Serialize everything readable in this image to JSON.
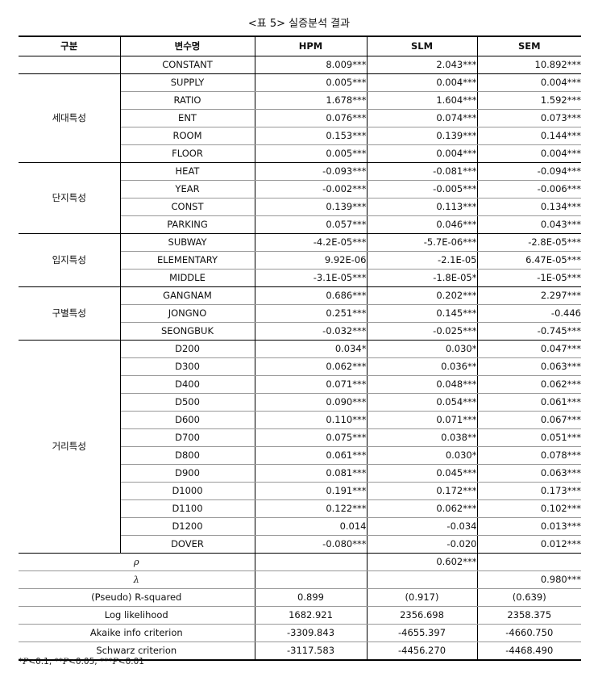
{
  "caption": "<표 5> 실증분석 결과",
  "headers": [
    "구분",
    "변수명",
    "HPM",
    "SLM",
    "SEM"
  ],
  "groups": [
    {
      "name": "",
      "rows": [
        {
          "var": "CONSTANT",
          "hpm": "8.009***",
          "slm": "2.043***",
          "sem": "10.892***"
        }
      ]
    },
    {
      "name": "세대특성",
      "rows": [
        {
          "var": "SUPPLY",
          "hpm": "0.005***",
          "slm": "0.004***",
          "sem": "0.004***"
        },
        {
          "var": "RATIO",
          "hpm": "1.678***",
          "slm": "1.604***",
          "sem": "1.592***"
        },
        {
          "var": "ENT",
          "hpm": "0.076***",
          "slm": "0.074***",
          "sem": "0.073***"
        },
        {
          "var": "ROOM",
          "hpm": "0.153***",
          "slm": "0.139***",
          "sem": "0.144***"
        },
        {
          "var": "FLOOR",
          "hpm": "0.005***",
          "slm": "0.004***",
          "sem": "0.004***"
        }
      ]
    },
    {
      "name": "단지특성",
      "rows": [
        {
          "var": "HEAT",
          "hpm": "-0.093***",
          "slm": "-0.081***",
          "sem": "-0.094***"
        },
        {
          "var": "YEAR",
          "hpm": "-0.002***",
          "slm": "-0.005***",
          "sem": "-0.006***"
        },
        {
          "var": "CONST",
          "hpm": "0.139***",
          "slm": "0.113***",
          "sem": "0.134***"
        },
        {
          "var": "PARKING",
          "hpm": "0.057***",
          "slm": "0.046***",
          "sem": "0.043***"
        }
      ]
    },
    {
      "name": "입지특성",
      "rows": [
        {
          "var": "SUBWAY",
          "hpm": "-4.2E-05***",
          "slm": "-5.7E-06***",
          "sem": "-2.8E-05***"
        },
        {
          "var": "ELEMENTARY",
          "hpm": "9.92E-06",
          "slm": "-2.1E-05",
          "sem": "6.47E-05***"
        },
        {
          "var": "MIDDLE",
          "hpm": "-3.1E-05***",
          "slm": "-1.8E-05*",
          "sem": "-1E-05***"
        }
      ]
    },
    {
      "name": "구별특성",
      "rows": [
        {
          "var": "GANGNAM",
          "hpm": "0.686***",
          "slm": "0.202***",
          "sem": "2.297***"
        },
        {
          "var": "JONGNO",
          "hpm": "0.251***",
          "slm": "0.145***",
          "sem": "-0.446"
        },
        {
          "var": "SEONGBUK",
          "hpm": "-0.032***",
          "slm": "-0.025***",
          "sem": "-0.745***"
        }
      ]
    },
    {
      "name": "거리특성",
      "rows": [
        {
          "var": "D200",
          "hpm": "0.034*",
          "slm": "0.030*",
          "sem": "0.047***"
        },
        {
          "var": "D300",
          "hpm": "0.062***",
          "slm": "0.036**",
          "sem": "0.063***"
        },
        {
          "var": "D400",
          "hpm": "0.071***",
          "slm": "0.048***",
          "sem": "0.062***"
        },
        {
          "var": "D500",
          "hpm": "0.090***",
          "slm": "0.054***",
          "sem": "0.061***"
        },
        {
          "var": "D600",
          "hpm": "0.110***",
          "slm": "0.071***",
          "sem": "0.067***"
        },
        {
          "var": "D700",
          "hpm": "0.075***",
          "slm": "0.038**",
          "sem": "0.051***"
        },
        {
          "var": "D800",
          "hpm": "0.061***",
          "slm": "0.030*",
          "sem": "0.078***"
        },
        {
          "var": "D900",
          "hpm": "0.081***",
          "slm": "0.045***",
          "sem": "0.063***"
        },
        {
          "var": "D1000",
          "hpm": "0.191***",
          "slm": "0.172***",
          "sem": "0.173***"
        },
        {
          "var": "D1100",
          "hpm": "0.122***",
          "slm": "0.062***",
          "sem": "0.102***"
        },
        {
          "var": "D1200",
          "hpm": "0.014",
          "slm": "-0.034",
          "sem": "0.013***"
        },
        {
          "var": "DOVER",
          "hpm": "-0.080***",
          "slm": "-0.020",
          "sem": "0.012***"
        }
      ]
    }
  ],
  "greek_rows": [
    {
      "label": "ρ",
      "hpm": "",
      "slm": "0.602***",
      "sem": ""
    },
    {
      "label": "λ",
      "hpm": "",
      "slm": "",
      "sem": "0.980***"
    }
  ],
  "stat_rows": [
    {
      "label": "(Pseudo) R-squared",
      "hpm": "0.899",
      "slm": "(0.917)",
      "sem": "(0.639)"
    },
    {
      "label": "Log likelihood",
      "hpm": "1682.921",
      "slm": "2356.698",
      "sem": "2358.375"
    },
    {
      "label": "Akaike info criterion",
      "hpm": "-3309.843",
      "slm": "-4655.397",
      "sem": "-4660.750"
    },
    {
      "label": "Schwarz criterion",
      "hpm": "-3117.583",
      "slm": "-4456.270",
      "sem": "-4468.490"
    }
  ],
  "footnote": {
    "items": [
      {
        "stars": "*",
        "p": "P",
        "rest": "<0.1,"
      },
      {
        "stars": "**",
        "p": "P",
        "rest": "<0.05,"
      },
      {
        "stars": "***",
        "p": "P",
        "rest": "<0.01"
      }
    ]
  }
}
